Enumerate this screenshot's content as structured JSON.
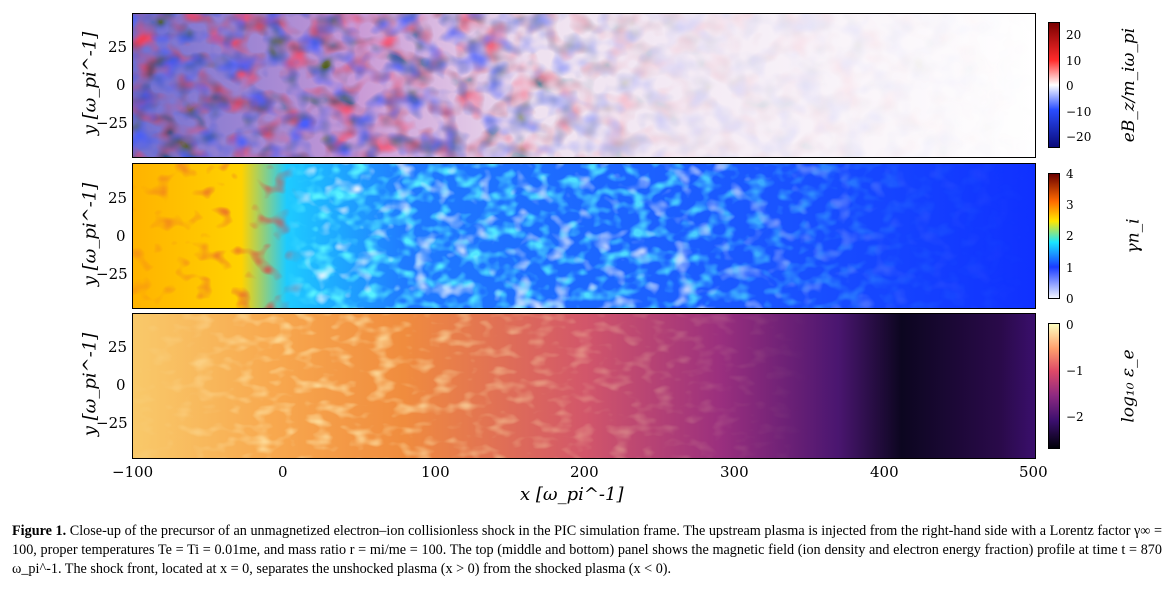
{
  "figure": {
    "panels": [
      {
        "ylabel": "y [ω_pi^-1]",
        "yticks": [
          "25",
          "0",
          "−25"
        ],
        "colorbar_label": "eB_z/m_iω_pi",
        "colorbar_ticks": [
          "20",
          "10",
          "0",
          "−10",
          "−20"
        ],
        "colors": [
          "#0a0a7a",
          "#2a4dff",
          "#ffffff",
          "#ff2b2b",
          "#7a0000"
        ]
      },
      {
        "ylabel": "y [ω_pi^-1]",
        "yticks": [
          "25",
          "0",
          "−25"
        ],
        "colorbar_label": "γn_i",
        "colorbar_ticks": [
          "4",
          "3",
          "2",
          "1",
          "0"
        ],
        "colors": [
          "#f0f4ff",
          "#1a3cff",
          "#19e6ff",
          "#ffe700",
          "#ff6a00",
          "#6a0000"
        ]
      },
      {
        "ylabel": "y [ω_pi^-1]",
        "yticks": [
          "25",
          "0",
          "−25"
        ],
        "colorbar_label": "log₁₀ ε_e",
        "colorbar_ticks": [
          "0",
          "−1",
          "−2"
        ],
        "colors": [
          "#000008",
          "#3b0f6e",
          "#8c2981",
          "#de4968",
          "#fe9f6d",
          "#fcfdbf"
        ]
      }
    ],
    "xticks": [
      "−100",
      "0",
      "100",
      "200",
      "300",
      "400",
      "500"
    ],
    "xlabel": "x [ω_pi^-1]"
  },
  "caption": {
    "label": "Figure 1.",
    "text": "Close-up of the precursor of an unmagnetized electron–ion collisionless shock in the PIC simulation frame. The upstream plasma is injected from the right-hand side with a Lorentz factor γ∞ = 100, proper temperatures Te = Ti = 0.01me, and mass ratio r = mi/me = 100. The top (middle and bottom) panel shows the magnetic field (ion density and electron energy fraction) profile at time t = 870 ω_pi^-1. The shock front, located at x = 0, separates the unshocked plasma (x > 0) from the shocked plasma (x < 0)."
  }
}
